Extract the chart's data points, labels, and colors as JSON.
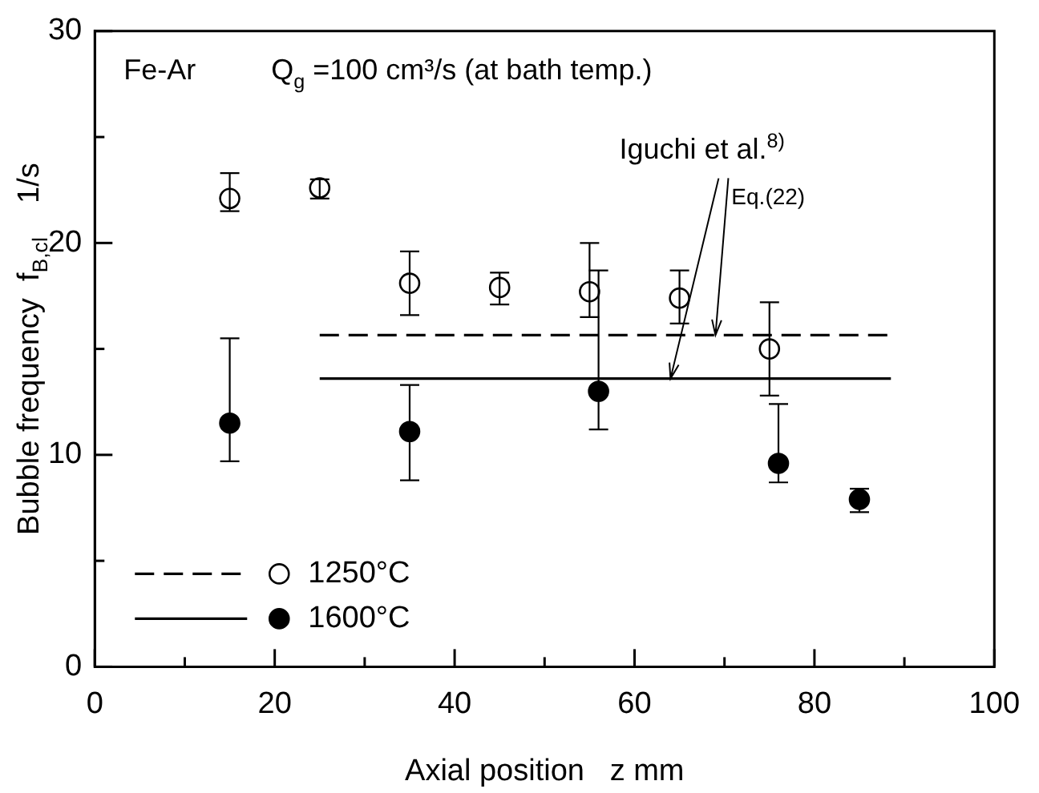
{
  "chart_data": {
    "type": "scatter",
    "xlabel": "Axial position   z mm",
    "ylabel": "Bubble frequency  f$_{B,cl}$    1/s",
    "xlim": [
      0,
      100
    ],
    "xticks": [
      0,
      {
        "value": 10,
        "label": null
      },
      20,
      {
        "value": 30,
        "label": null
      },
      40,
      {
        "value": 50,
        "label": null
      },
      60,
      {
        "value": 70,
        "label": null
      },
      80,
      {
        "value": 90,
        "label": null
      },
      100
    ],
    "ylim": [
      0,
      30
    ],
    "yticks": [
      0,
      {
        "value": 5,
        "label": null
      },
      10,
      {
        "value": 15,
        "label": null
      },
      20,
      {
        "value": 25,
        "label": null
      },
      30
    ],
    "grid": false,
    "legend": "bottom left",
    "marker": "circle",
    "series": [
      {
        "name": "1250°C",
        "color": "#000000",
        "x": [
          15,
          25,
          35,
          45,
          55,
          65,
          75
        ],
        "values": [
          22.1,
          22.6,
          18.1,
          17.9,
          17.7,
          17.4,
          15.0
        ],
        "errors": [
          [
            21.5,
            23.3
          ],
          [
            22.1,
            23.0
          ],
          [
            16.6,
            19.6
          ],
          [
            17.1,
            18.6
          ],
          [
            16.5,
            20.0
          ],
          [
            16.2,
            18.7
          ],
          [
            12.8,
            17.2
          ]
        ]
      },
      {
        "name": "1600°C",
        "color": "#000000",
        "x": [
          15,
          35,
          56,
          76,
          85
        ],
        "values": [
          11.5,
          11.1,
          13.0,
          9.6,
          7.9
        ],
        "errors": [
          [
            9.7,
            15.5
          ],
          [
            8.8,
            13.3
          ],
          [
            11.2,
            18.7
          ],
          [
            8.7,
            12.4
          ],
          [
            7.3,
            8.4
          ]
        ]
      },
      {
        "type": "line",
        "color": "#000000",
        "line_style": "dashed",
        "marker": "none",
        "x": [
          25,
          88.5
        ],
        "values": [
          15.65,
          15.65
        ]
      },
      {
        "type": "line",
        "color": "#000000",
        "line_style": "solid",
        "marker": "none",
        "x": [
          25,
          88.5
        ],
        "values": [
          13.6,
          13.6
        ]
      }
    ],
    "annotations": [
      "Fe-Ar",
      "Q$_{g}$ =100 cm³/s (at bath temp.)",
      {
        "text": "Iguchi et al.$^{8)}$",
        "x": 69,
        "y": 15.65
      },
      {
        "text": "Eq.(22)",
        "x": 64,
        "y": 13.6
      }
    ]
  }
}
